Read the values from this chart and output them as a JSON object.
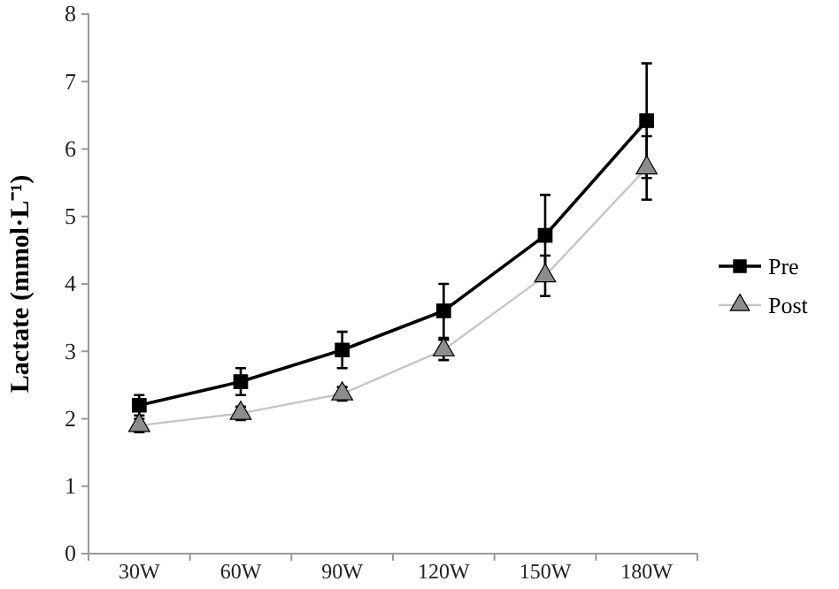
{
  "chart_data": {
    "type": "line",
    "ylabel": "Lactate (mmol·L⁻¹)",
    "categories": [
      "30W",
      "60W",
      "90W",
      "120W",
      "150W",
      "180W"
    ],
    "series": [
      {
        "name": "Pre",
        "color": "#000000",
        "marker": "square",
        "values": [
          2.2,
          2.55,
          3.02,
          3.6,
          4.72,
          6.42
        ],
        "errors": [
          0.15,
          0.2,
          0.27,
          0.4,
          0.6,
          0.85
        ]
      },
      {
        "name": "Post",
        "color": "#8c8c8c",
        "marker": "triangle",
        "values": [
          1.9,
          2.08,
          2.37,
          3.02,
          4.12,
          5.72
        ],
        "errors": [
          0.1,
          0.1,
          0.1,
          0.15,
          0.3,
          0.47
        ]
      }
    ],
    "ylim": [
      0,
      8
    ],
    "yticks": [
      0,
      1,
      2,
      3,
      4,
      5,
      6,
      7,
      8
    ],
    "grid": false,
    "legend": "right",
    "line_style": "solid"
  }
}
